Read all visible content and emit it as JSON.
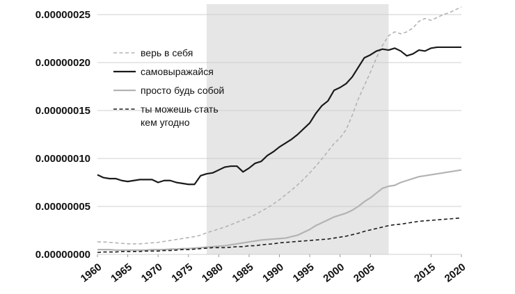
{
  "chart_data": {
    "type": "line",
    "title": "",
    "xlabel": "",
    "ylabel": "",
    "xlim": [
      1960,
      2020
    ],
    "ylim": [
      0,
      2.5e-07
    ],
    "grid": "horizontal",
    "legend_position": "top-left",
    "x_ticks": [
      1960,
      1965,
      1970,
      1975,
      1980,
      1985,
      1990,
      1995,
      2000,
      2005,
      2015,
      2020
    ],
    "x_tick_labels": [
      "1960",
      "1965",
      "1970",
      "1975",
      "1980",
      "1985",
      "1990",
      "1995",
      "2000",
      "2005",
      "2015",
      "2020"
    ],
    "y_ticks": [
      0,
      5e-08,
      1e-07,
      1.5e-07,
      2e-07,
      2.5e-07
    ],
    "y_tick_labels": [
      "0.00000000",
      "0.00000005",
      "0.00000010",
      "0.00000015",
      "0.00000020",
      "0.00000025"
    ],
    "shaded_region": {
      "x_start": 1978,
      "x_end": 2008,
      "color": "#e6e6e6"
    },
    "x": [
      1960,
      1961,
      1962,
      1963,
      1964,
      1965,
      1966,
      1967,
      1968,
      1969,
      1970,
      1971,
      1972,
      1973,
      1974,
      1975,
      1976,
      1977,
      1978,
      1979,
      1980,
      1981,
      1982,
      1983,
      1984,
      1985,
      1986,
      1987,
      1988,
      1989,
      1990,
      1991,
      1992,
      1993,
      1994,
      1995,
      1996,
      1997,
      1998,
      1999,
      2000,
      2001,
      2002,
      2003,
      2004,
      2005,
      2006,
      2007,
      2008,
      2009,
      2010,
      2011,
      2012,
      2013,
      2014,
      2015,
      2016,
      2017,
      2018,
      2019,
      2020
    ],
    "series": [
      {
        "name": "верь в себя",
        "color": "#b3b3b3",
        "dash": "dashed",
        "values": [
          1.3e-08,
          1.3e-08,
          1.25e-08,
          1.2e-08,
          1.15e-08,
          1.1e-08,
          1.1e-08,
          1.1e-08,
          1.15e-08,
          1.2e-08,
          1.25e-08,
          1.35e-08,
          1.45e-08,
          1.55e-08,
          1.65e-08,
          1.75e-08,
          1.85e-08,
          2e-08,
          2.25e-08,
          2.45e-08,
          2.65e-08,
          2.85e-08,
          3.1e-08,
          3.35e-08,
          3.6e-08,
          3.85e-08,
          4.15e-08,
          4.5e-08,
          4.85e-08,
          5.25e-08,
          5.7e-08,
          6.2e-08,
          6.7e-08,
          7.25e-08,
          7.85e-08,
          8.5e-08,
          9.2e-08,
          9.95e-08,
          1.075e-07,
          1.155e-07,
          1.215e-07,
          1.3e-07,
          1.45e-07,
          1.62e-07,
          1.76e-07,
          1.9e-07,
          2.05e-07,
          2.18e-07,
          2.28e-07,
          2.32e-07,
          2.3e-07,
          2.32e-07,
          2.36e-07,
          2.43e-07,
          2.46e-07,
          2.44e-07,
          2.47e-07,
          2.5e-07,
          2.52e-07,
          2.55e-07,
          2.58e-07
        ]
      },
      {
        "name": "самовыражайся",
        "color": "#1a1a1a",
        "dash": "solid",
        "values": [
          8.3e-08,
          8e-08,
          7.9e-08,
          7.9e-08,
          7.7e-08,
          7.6e-08,
          7.7e-08,
          7.8e-08,
          7.8e-08,
          7.8e-08,
          7.5e-08,
          7.7e-08,
          7.7e-08,
          7.5e-08,
          7.4e-08,
          7.3e-08,
          7.3e-08,
          8.2e-08,
          8.4e-08,
          8.5e-08,
          8.8e-08,
          9.1e-08,
          9.2e-08,
          9.2e-08,
          8.6e-08,
          9e-08,
          9.5e-08,
          9.7e-08,
          1.03e-07,
          1.07e-07,
          1.12e-07,
          1.16e-07,
          1.2e-07,
          1.25e-07,
          1.31e-07,
          1.37e-07,
          1.47e-07,
          1.55e-07,
          1.6e-07,
          1.71e-07,
          1.74e-07,
          1.78e-07,
          1.85e-07,
          1.95e-07,
          2.05e-07,
          2.08e-07,
          2.12e-07,
          2.14e-07,
          2.13e-07,
          2.15e-07,
          2.12e-07,
          2.07e-07,
          2.09e-07,
          2.13e-07,
          2.12e-07,
          2.15e-07,
          2.16e-07,
          2.16e-07,
          2.16e-07,
          2.16e-07,
          2.16e-07
        ]
      },
      {
        "name": "просто будь собой",
        "color": "#b3b3b3",
        "dash": "solid",
        "values": [
          5e-09,
          5e-09,
          5e-09,
          4.5e-09,
          4.5e-09,
          4.5e-09,
          4.5e-09,
          4.5e-09,
          4.5e-09,
          5e-09,
          5e-09,
          5e-09,
          5.5e-09,
          5.5e-09,
          6e-09,
          6e-09,
          6.5e-09,
          7e-09,
          7.5e-09,
          8e-09,
          8.5e-09,
          9e-09,
          1e-08,
          1.1e-08,
          1.2e-08,
          1.3e-08,
          1.4e-08,
          1.5e-08,
          1.55e-08,
          1.6e-08,
          1.65e-08,
          1.7e-08,
          1.85e-08,
          2e-08,
          2.3e-08,
          2.6e-08,
          3e-08,
          3.3e-08,
          3.6e-08,
          3.9e-08,
          4.1e-08,
          4.3e-08,
          4.6e-08,
          5e-08,
          5.5e-08,
          5.9e-08,
          6.4e-08,
          6.9e-08,
          7.1e-08,
          7.2e-08,
          7.5e-08,
          7.7e-08,
          7.9e-08,
          8.1e-08,
          8.2e-08,
          8.3e-08,
          8.4e-08,
          8.5e-08,
          8.6e-08,
          8.7e-08,
          8.8e-08
        ]
      },
      {
        "name": "ты можешь стать кем угодно",
        "color": "#1a1a1a",
        "dash": "dashed",
        "values": [
          2e-09,
          2.5e-09,
          2.5e-09,
          2.5e-09,
          3e-09,
          3e-09,
          3e-09,
          3e-09,
          3.5e-09,
          3.5e-09,
          3.5e-09,
          4e-09,
          4e-09,
          4.5e-09,
          5e-09,
          5e-09,
          5.5e-09,
          6e-09,
          6.5e-09,
          7e-09,
          7e-09,
          7e-09,
          7.5e-09,
          8e-09,
          8e-09,
          9e-09,
          9e-09,
          1e-08,
          1.05e-08,
          1.1e-08,
          1.2e-08,
          1.25e-08,
          1.3e-08,
          1.35e-08,
          1.4e-08,
          1.45e-08,
          1.5e-08,
          1.55e-08,
          1.6e-08,
          1.7e-08,
          1.8e-08,
          1.9e-08,
          2.05e-08,
          2.2e-08,
          2.4e-08,
          2.55e-08,
          2.7e-08,
          2.85e-08,
          3e-08,
          3.1e-08,
          3.15e-08,
          3.25e-08,
          3.35e-08,
          3.45e-08,
          3.5e-08,
          3.55e-08,
          3.6e-08,
          3.65e-08,
          3.7e-08,
          3.75e-08,
          3.8e-08
        ]
      }
    ],
    "legend_lines": [
      [
        "верь в себя"
      ],
      [
        "самовыражайся"
      ],
      [
        "просто будь собой"
      ],
      [
        "ты можешь стать",
        "кем угодно"
      ]
    ]
  }
}
